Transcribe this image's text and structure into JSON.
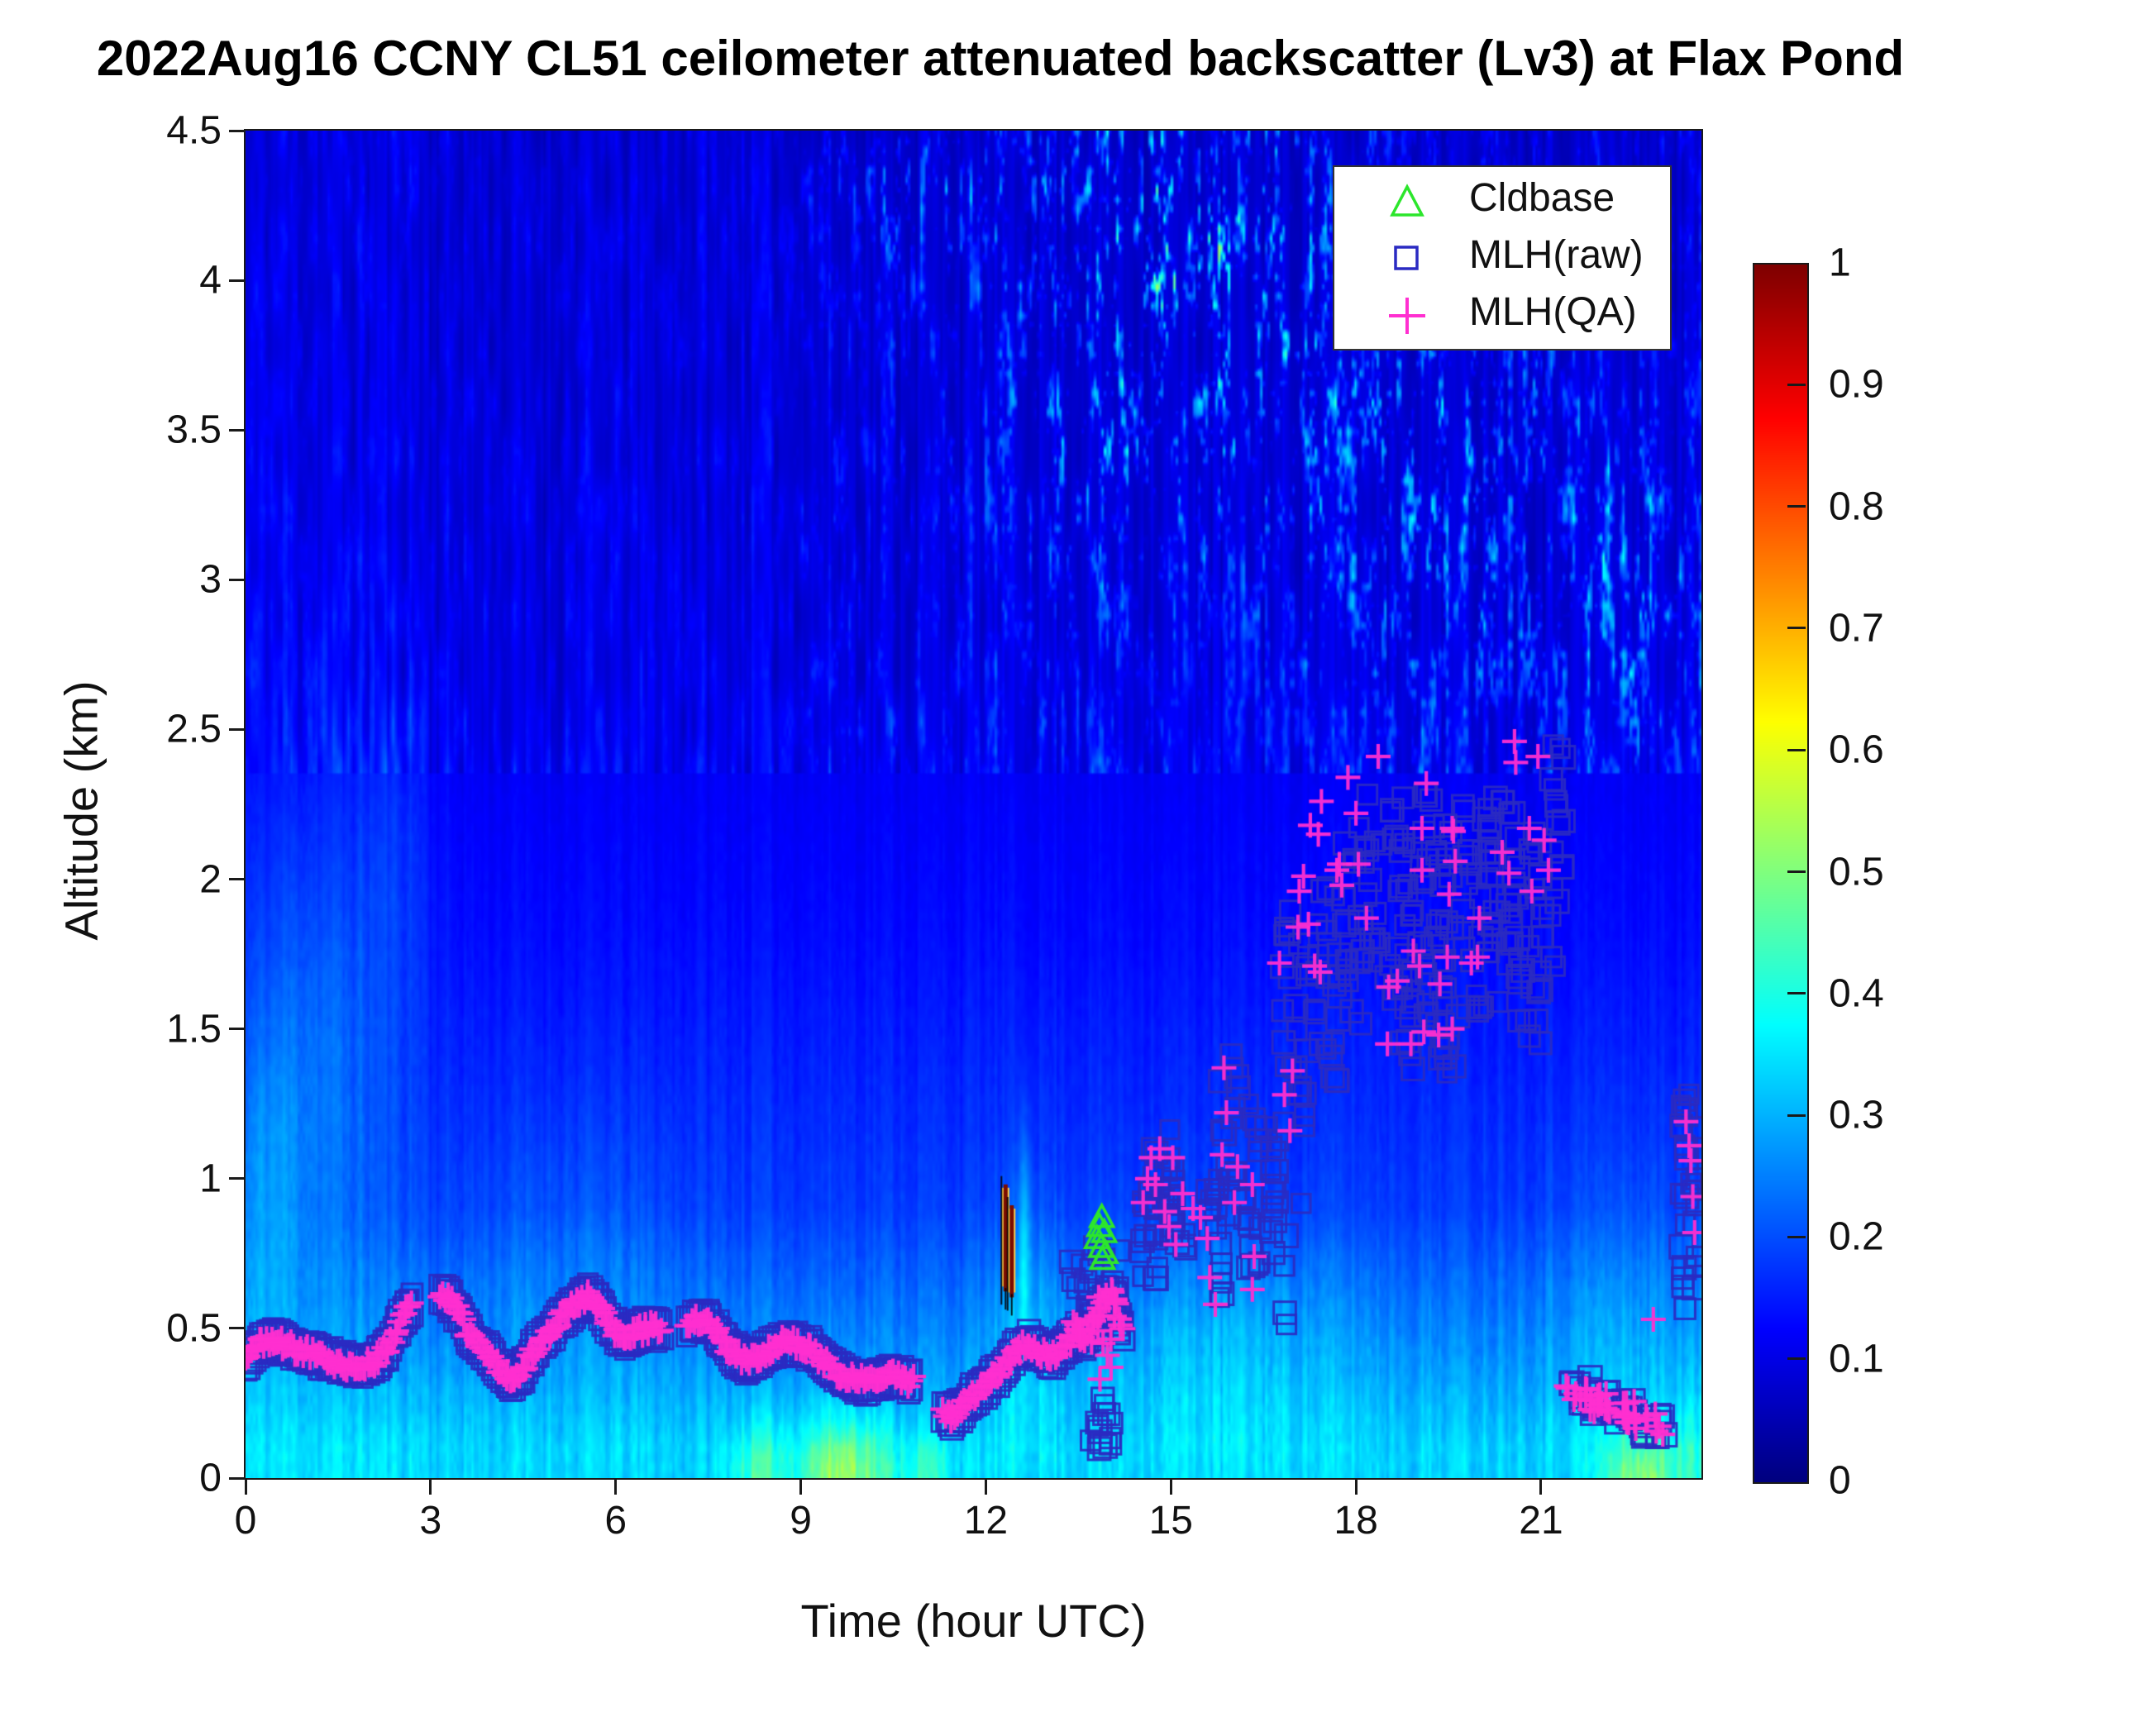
{
  "title": "2022Aug16 CCNY CL51 ceilometer attenuated backscatter (Lv3) at Flax Pond",
  "axes": {
    "xlabel": "Time (hour UTC)",
    "ylabel": "Altitude (km)",
    "xlim": [
      0,
      23.6
    ],
    "ylim": [
      0,
      4.5
    ],
    "xticks": [
      0,
      3,
      6,
      9,
      12,
      15,
      18,
      21
    ],
    "yticks": [
      0,
      0.5,
      1,
      1.5,
      2,
      2.5,
      3,
      3.5,
      4,
      4.5
    ]
  },
  "colorbar": {
    "min": 0,
    "max": 1,
    "ticks": [
      0,
      0.1,
      0.2,
      0.3,
      0.4,
      0.5,
      0.6,
      0.7,
      0.8,
      0.9,
      1
    ],
    "colormap": "jet"
  },
  "legend": {
    "items": [
      {
        "label": "Cldbase",
        "marker": "triangle",
        "color": "#2ce62c"
      },
      {
        "label": "MLH(raw)",
        "marker": "square",
        "color": "#2a2ac2"
      },
      {
        "label": "MLH(QA)",
        "marker": "plus",
        "color": "#ff2fd0"
      }
    ]
  },
  "colors": {
    "cldbase": "#2ce62c",
    "mlh_raw": "#2a2ac2",
    "mlh_qa": "#ff2fd0",
    "axis": "#1a1a1a",
    "streak_red": "#7a0c00",
    "streak_yellow": "#ffd24d"
  },
  "chart_data": {
    "type": "heatmap",
    "title": "2022Aug16 CCNY CL51 ceilometer attenuated backscatter (Lv3) at Flax Pond",
    "xlabel": "Time (hour UTC)",
    "ylabel": "Altitude (km)",
    "xlim": [
      0,
      23.6
    ],
    "ylim": [
      0,
      4.5
    ],
    "value_range": [
      0,
      1
    ],
    "background_description": "Normalized attenuated backscatter: cyan band (~0.3) below 0.4 km with yellow-green maxima near 8-10.5 h and 22-23.3 h; mid blue (~0.15-0.2) between 0.5-2 km; dark navy (~0.08) aloft with vertical cyan cloud/virga streaks mainly 12.5-23.5 h above 3 km; brighter haze 0-3 h at 0.8-2.3 km; bright column near 12.6 h below 1 km",
    "series": [
      {
        "name": "Cldbase",
        "marker": "triangle",
        "points": [
          [
            13.8,
            0.8
          ],
          [
            13.84,
            0.84
          ],
          [
            13.88,
            0.87
          ],
          [
            13.87,
            0.77
          ],
          [
            13.92,
            0.82
          ],
          [
            13.94,
            0.75
          ],
          [
            13.89,
            0.73
          ]
        ]
      },
      {
        "name": "MLH(QA)",
        "marker": "plus",
        "trace": [
          [
            0.0,
            0.4
          ],
          [
            0.1,
            0.42
          ],
          [
            0.25,
            0.45
          ],
          [
            0.45,
            0.46
          ],
          [
            0.6,
            0.45
          ],
          [
            0.8,
            0.43
          ],
          [
            1.0,
            0.42
          ],
          [
            1.15,
            0.41
          ],
          [
            1.35,
            0.4
          ],
          [
            1.55,
            0.38
          ],
          [
            1.8,
            0.37
          ],
          [
            2.0,
            0.38
          ],
          [
            2.15,
            0.4
          ],
          [
            2.3,
            0.43
          ],
          [
            2.45,
            0.5
          ],
          [
            2.6,
            0.56
          ],
          [
            2.72,
            0.58
          ],
          [
            3.15,
            0.62
          ],
          [
            3.3,
            0.6
          ],
          [
            3.45,
            0.55
          ],
          [
            3.6,
            0.49
          ],
          [
            3.78,
            0.44
          ],
          [
            3.95,
            0.41
          ],
          [
            4.1,
            0.37
          ],
          [
            4.25,
            0.34
          ],
          [
            4.35,
            0.33
          ],
          [
            4.5,
            0.36
          ],
          [
            4.65,
            0.42
          ],
          [
            4.8,
            0.46
          ],
          [
            4.95,
            0.49
          ],
          [
            5.1,
            0.53
          ],
          [
            5.28,
            0.57
          ],
          [
            5.45,
            0.6
          ],
          [
            5.55,
            0.61
          ],
          [
            5.7,
            0.58
          ],
          [
            5.85,
            0.53
          ],
          [
            6.0,
            0.49
          ],
          [
            6.15,
            0.47
          ],
          [
            6.3,
            0.48
          ],
          [
            6.48,
            0.5
          ],
          [
            6.65,
            0.5
          ],
          [
            6.78,
            0.49
          ],
          [
            7.15,
            0.51
          ],
          [
            7.3,
            0.53
          ],
          [
            7.5,
            0.52
          ],
          [
            7.65,
            0.48
          ],
          [
            7.8,
            0.44
          ],
          [
            7.95,
            0.41
          ],
          [
            8.12,
            0.39
          ],
          [
            8.3,
            0.4
          ],
          [
            8.5,
            0.43
          ],
          [
            8.7,
            0.45
          ],
          [
            8.95,
            0.45
          ],
          [
            9.15,
            0.43
          ],
          [
            9.33,
            0.4
          ],
          [
            9.5,
            0.37
          ],
          [
            9.65,
            0.35
          ],
          [
            9.85,
            0.33
          ],
          [
            10.05,
            0.32
          ],
          [
            10.25,
            0.33
          ],
          [
            10.45,
            0.34
          ],
          [
            10.65,
            0.33
          ],
          [
            10.85,
            0.32
          ],
          [
            11.3,
            0.22
          ],
          [
            11.45,
            0.2
          ],
          [
            11.6,
            0.23
          ],
          [
            11.78,
            0.27
          ],
          [
            11.95,
            0.3
          ],
          [
            12.1,
            0.33
          ],
          [
            12.25,
            0.36
          ],
          [
            12.4,
            0.4
          ],
          [
            12.55,
            0.43
          ],
          [
            12.7,
            0.45
          ],
          [
            12.85,
            0.43
          ],
          [
            13.0,
            0.4
          ],
          [
            13.17,
            0.42
          ],
          [
            13.33,
            0.45
          ],
          [
            13.48,
            0.48
          ],
          [
            13.6,
            0.47
          ],
          [
            13.75,
            0.52
          ],
          [
            13.85,
            0.56
          ],
          [
            13.95,
            0.6
          ],
          [
            14.05,
            0.63
          ],
          [
            14.12,
            0.58
          ],
          [
            14.18,
            0.52
          ],
          [
            14.25,
            0.49
          ]
        ],
        "points": [
          [
            13.9,
            0.45
          ],
          [
            13.97,
            0.41
          ],
          [
            14.03,
            0.37
          ],
          [
            13.85,
            0.33
          ],
          [
            14.55,
            0.92
          ],
          [
            14.62,
            1.0
          ],
          [
            14.68,
            1.07
          ],
          [
            14.75,
            0.98
          ],
          [
            14.82,
            1.1
          ],
          [
            14.9,
            0.89
          ],
          [
            14.97,
            0.84
          ],
          [
            15.03,
            1.07
          ],
          [
            15.08,
            0.78
          ],
          [
            15.19,
            0.95
          ],
          [
            15.36,
            0.9
          ],
          [
            15.48,
            0.87
          ],
          [
            15.59,
            0.8
          ],
          [
            15.63,
            0.67
          ],
          [
            15.72,
            0.58
          ],
          [
            15.83,
            1.08
          ],
          [
            15.86,
            1.37
          ],
          [
            15.9,
            1.22
          ],
          [
            16.03,
            0.92
          ],
          [
            16.08,
            1.04
          ],
          [
            16.32,
            0.98
          ],
          [
            16.32,
            0.63
          ],
          [
            16.35,
            0.74
          ],
          [
            16.76,
            1.72
          ],
          [
            16.84,
            1.28
          ],
          [
            16.93,
            1.16
          ],
          [
            16.97,
            1.36
          ],
          [
            17.06,
            1.84
          ],
          [
            17.08,
            1.96
          ],
          [
            17.15,
            2.01
          ],
          [
            17.23,
            1.85
          ],
          [
            17.26,
            2.18
          ],
          [
            17.33,
            1.71
          ],
          [
            17.39,
            2.15
          ],
          [
            17.42,
            1.69
          ],
          [
            17.44,
            2.26
          ],
          [
            17.69,
            2.03
          ],
          [
            17.73,
            2.05
          ],
          [
            17.77,
            1.98
          ],
          [
            17.87,
            2.34
          ],
          [
            18.0,
            2.22
          ],
          [
            18.04,
            2.05
          ],
          [
            18.17,
            1.87
          ],
          [
            18.36,
            2.41
          ],
          [
            18.51,
            1.45
          ],
          [
            18.53,
            1.64
          ],
          [
            18.67,
            1.66
          ],
          [
            18.89,
            1.45
          ],
          [
            18.93,
            1.76
          ],
          [
            19.03,
            1.71
          ],
          [
            19.07,
            2.17
          ],
          [
            19.07,
            2.03
          ],
          [
            19.1,
            1.49
          ],
          [
            19.14,
            2.32
          ],
          [
            19.34,
            1.48
          ],
          [
            19.36,
            1.65
          ],
          [
            19.48,
            1.74
          ],
          [
            19.51,
            1.95
          ],
          [
            19.56,
            2.17
          ],
          [
            19.56,
            1.5
          ],
          [
            19.58,
            2.16
          ],
          [
            19.61,
            2.06
          ],
          [
            19.87,
            1.72
          ],
          [
            19.97,
            1.74
          ],
          [
            20.0,
            1.87
          ],
          [
            20.37,
            2.09
          ],
          [
            20.48,
            2.02
          ],
          [
            20.57,
            2.46
          ],
          [
            20.59,
            2.39
          ],
          [
            20.81,
            2.17
          ],
          [
            20.85,
            1.96
          ],
          [
            20.95,
            2.41
          ],
          [
            21.05,
            2.13
          ],
          [
            21.12,
            2.03
          ],
          [
            22.82,
            0.53
          ],
          [
            23.35,
            1.19
          ],
          [
            23.4,
            1.11
          ],
          [
            23.43,
            1.06
          ],
          [
            23.46,
            0.94
          ],
          [
            23.49,
            0.82
          ]
        ],
        "clusters": [
          [
            21.4,
            21.82,
            0.26,
            0.33,
            10
          ],
          [
            21.78,
            22.18,
            0.22,
            0.29,
            10
          ],
          [
            22.14,
            22.52,
            0.18,
            0.26,
            10
          ],
          [
            22.48,
            23.0,
            0.14,
            0.22,
            10
          ],
          [
            13.35,
            14.15,
            0.45,
            0.62,
            10
          ]
        ]
      },
      {
        "name": "MLH(raw)",
        "marker": "square",
        "follows_trace_of": "MLH(QA)",
        "clusters": [
          [
            13.35,
            14.2,
            0.45,
            0.78,
            22
          ],
          [
            13.65,
            14.05,
            0.09,
            0.28,
            14
          ],
          [
            14.5,
            14.85,
            0.62,
            0.98,
            16
          ],
          [
            14.7,
            15.05,
            0.8,
            1.17,
            16
          ],
          [
            14.95,
            15.25,
            0.74,
            1.02,
            12
          ],
          [
            15.55,
            15.85,
            0.6,
            1.06,
            14
          ],
          [
            15.75,
            16.12,
            0.88,
            1.45,
            16
          ],
          [
            16.15,
            16.5,
            0.7,
            1.28,
            16
          ],
          [
            16.52,
            16.88,
            0.5,
            1.22,
            18
          ],
          [
            16.8,
            17.22,
            0.88,
            1.92,
            26
          ],
          [
            17.3,
            17.78,
            1.28,
            1.98,
            22
          ],
          [
            17.7,
            18.12,
            1.5,
            2.2,
            18
          ],
          [
            18.1,
            18.48,
            1.68,
            2.3,
            16
          ],
          [
            18.5,
            18.95,
            1.35,
            2.28,
            30
          ],
          [
            18.9,
            19.35,
            1.5,
            2.3,
            26
          ],
          [
            19.3,
            19.78,
            1.35,
            2.2,
            28
          ],
          [
            19.72,
            20.18,
            1.5,
            2.27,
            24
          ],
          [
            20.15,
            20.62,
            1.58,
            2.3,
            26
          ],
          [
            20.55,
            21.02,
            1.45,
            2.2,
            24
          ],
          [
            20.95,
            21.38,
            1.68,
            2.45,
            22
          ],
          [
            21.4,
            21.82,
            0.25,
            0.34,
            12
          ],
          [
            21.78,
            22.18,
            0.21,
            0.3,
            12
          ],
          [
            22.14,
            22.52,
            0.17,
            0.27,
            12
          ],
          [
            22.48,
            23.02,
            0.13,
            0.23,
            14
          ],
          [
            23.26,
            23.58,
            0.55,
            1.31,
            30
          ]
        ]
      }
    ],
    "cloud_streaks": [
      {
        "hour": 12.32,
        "z0": 0.64,
        "z1": 0.97
      },
      {
        "hour": 12.42,
        "z0": 0.62,
        "z1": 0.9
      }
    ]
  }
}
